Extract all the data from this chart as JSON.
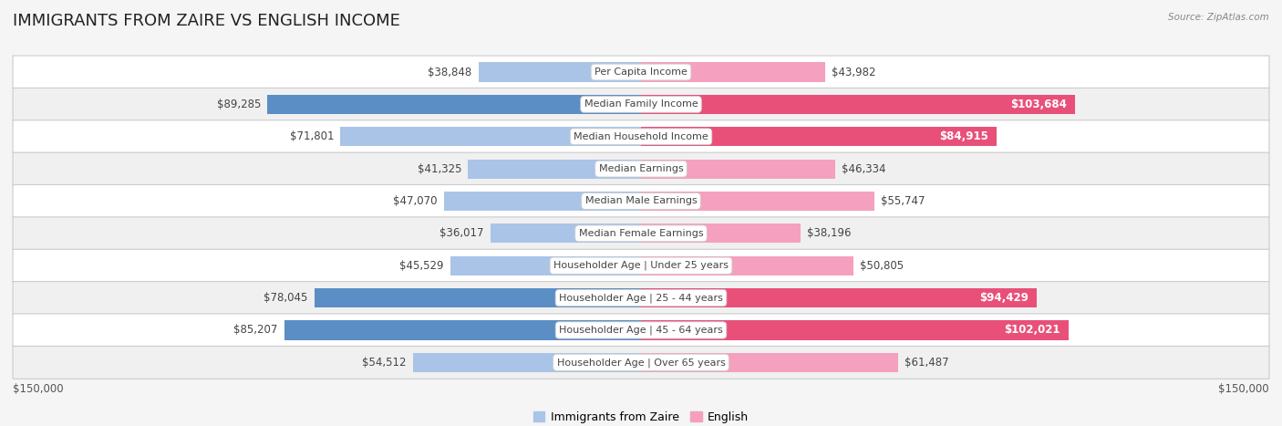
{
  "title": "IMMIGRANTS FROM ZAIRE VS ENGLISH INCOME",
  "source": "Source: ZipAtlas.com",
  "categories": [
    "Per Capita Income",
    "Median Family Income",
    "Median Household Income",
    "Median Earnings",
    "Median Male Earnings",
    "Median Female Earnings",
    "Householder Age | Under 25 years",
    "Householder Age | 25 - 44 years",
    "Householder Age | 45 - 64 years",
    "Householder Age | Over 65 years"
  ],
  "zaire_values": [
    38848,
    89285,
    71801,
    41325,
    47070,
    36017,
    45529,
    78045,
    85207,
    54512
  ],
  "english_values": [
    43982,
    103684,
    84915,
    46334,
    55747,
    38196,
    50805,
    94429,
    102021,
    61487
  ],
  "zaire_labels": [
    "$38,848",
    "$89,285",
    "$71,801",
    "$41,325",
    "$47,070",
    "$36,017",
    "$45,529",
    "$78,045",
    "$85,207",
    "$54,512"
  ],
  "english_labels": [
    "$43,982",
    "$103,684",
    "$84,915",
    "$46,334",
    "$55,747",
    "$38,196",
    "$50,805",
    "$94,429",
    "$102,021",
    "$61,487"
  ],
  "zaire_color_light": "#aac4e8",
  "zaire_color_dark": "#5b8ec4",
  "english_color_light": "#f5a0bf",
  "english_color_dark": "#e8507a",
  "max_value": 150000,
  "x_label_left": "$150,000",
  "x_label_right": "$150,000",
  "bar_height": 0.6,
  "background_color": "#f5f5f5",
  "row_bg_even": "#ffffff",
  "row_bg_odd": "#f0f0f0",
  "title_fontsize": 13,
  "label_fontsize": 8.5,
  "category_fontsize": 8,
  "legend_fontsize": 9,
  "dark_threshold": 0.52
}
